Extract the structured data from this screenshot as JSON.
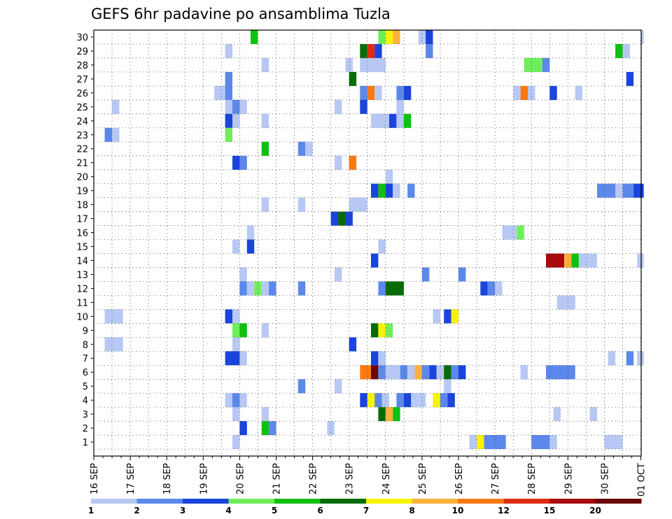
{
  "chart_data": {
    "type": "heatmap",
    "title": "GEFS 6hr padavine po ansamblima Tuzla",
    "x_ticks": [
      "16 SEP",
      "17 SEP",
      "18 SEP",
      "19 SEP",
      "20 SEP",
      "21 SEP",
      "22 SEP",
      "23 SEP",
      "24 SEP",
      "25 SEP",
      "26 SEP",
      "27 SEP",
      "28 SEP",
      "29 SEP",
      "30 SEP",
      "01 OCT"
    ],
    "y_ticks": [
      1,
      2,
      3,
      4,
      5,
      6,
      7,
      8,
      9,
      10,
      11,
      12,
      13,
      14,
      15,
      16,
      17,
      18,
      19,
      20,
      21,
      22,
      23,
      24,
      25,
      26,
      27,
      28,
      29,
      30
    ],
    "x_range_days": [
      0,
      15.08
    ],
    "y_range_members": [
      0,
      30
    ],
    "grid": true,
    "colorbar": {
      "labels": [
        "1",
        "2",
        "3",
        "4",
        "5",
        "6",
        "7",
        "8",
        "10",
        "12",
        "15",
        "20"
      ],
      "colors": [
        "#b7c8f4",
        "#5b88ea",
        "#1a44db",
        "#6fee5a",
        "#10c010",
        "#076b07",
        "#f7f400",
        "#fbb23b",
        "#f97a13",
        "#dc2b10",
        "#a70a0a",
        "#6a0707"
      ]
    },
    "cells": [
      [
        30,
        4.3,
        4.5,
        4
      ],
      [
        30,
        7.8,
        8.0,
        3
      ],
      [
        30,
        8.0,
        8.2,
        6
      ],
      [
        30,
        8.2,
        8.4,
        7
      ],
      [
        30,
        8.9,
        9.1,
        0
      ],
      [
        30,
        9.1,
        9.3,
        2
      ],
      [
        30,
        15.0,
        15.1,
        0
      ],
      [
        29,
        3.6,
        3.8,
        0
      ],
      [
        29,
        7.3,
        7.5,
        5
      ],
      [
        29,
        7.5,
        7.7,
        9
      ],
      [
        29,
        7.7,
        7.9,
        2
      ],
      [
        29,
        9.1,
        9.3,
        1
      ],
      [
        29,
        14.3,
        14.5,
        4
      ],
      [
        29,
        14.5,
        14.7,
        0
      ],
      [
        28,
        4.6,
        4.8,
        0
      ],
      [
        28,
        6.9,
        7.1,
        0
      ],
      [
        28,
        7.3,
        8.0,
        0
      ],
      [
        28,
        11.8,
        12.3,
        3
      ],
      [
        28,
        12.3,
        12.5,
        1
      ],
      [
        27,
        3.6,
        3.8,
        1
      ],
      [
        27,
        7.0,
        7.2,
        5
      ],
      [
        27,
        14.6,
        14.8,
        2
      ],
      [
        26,
        3.3,
        3.6,
        0
      ],
      [
        26,
        3.6,
        3.8,
        1
      ],
      [
        26,
        7.3,
        7.5,
        1
      ],
      [
        26,
        7.5,
        7.7,
        8
      ],
      [
        26,
        7.7,
        7.9,
        0
      ],
      [
        26,
        8.3,
        8.5,
        1
      ],
      [
        26,
        8.5,
        8.7,
        2
      ],
      [
        26,
        11.5,
        11.7,
        0
      ],
      [
        26,
        11.7,
        11.9,
        8
      ],
      [
        26,
        11.9,
        12.1,
        0
      ],
      [
        26,
        12.5,
        12.7,
        2
      ],
      [
        26,
        13.2,
        13.4,
        0
      ],
      [
        25,
        0.5,
        0.7,
        0
      ],
      [
        25,
        3.6,
        3.8,
        0
      ],
      [
        25,
        3.8,
        4.0,
        1
      ],
      [
        25,
        4.0,
        4.2,
        0
      ],
      [
        25,
        6.6,
        6.8,
        0
      ],
      [
        25,
        7.3,
        7.5,
        2
      ],
      [
        25,
        8.3,
        8.5,
        0
      ],
      [
        24,
        3.6,
        3.8,
        2
      ],
      [
        24,
        3.8,
        4.0,
        0
      ],
      [
        24,
        4.6,
        4.8,
        0
      ],
      [
        24,
        7.6,
        8.1,
        0
      ],
      [
        24,
        8.1,
        8.3,
        2
      ],
      [
        24,
        8.3,
        8.5,
        0
      ],
      [
        24,
        8.5,
        8.7,
        4
      ],
      [
        23,
        0.3,
        0.5,
        1
      ],
      [
        23,
        0.5,
        0.7,
        0
      ],
      [
        23,
        3.6,
        3.8,
        3
      ],
      [
        22,
        4.6,
        4.8,
        4
      ],
      [
        22,
        5.6,
        5.8,
        1
      ],
      [
        22,
        5.8,
        6.0,
        0
      ],
      [
        21,
        3.8,
        4.0,
        2
      ],
      [
        21,
        4.0,
        4.2,
        1
      ],
      [
        21,
        6.6,
        6.8,
        0
      ],
      [
        21,
        7.0,
        7.2,
        8
      ],
      [
        20,
        8.0,
        8.2,
        0
      ],
      [
        19,
        7.6,
        7.8,
        2
      ],
      [
        19,
        7.8,
        8.0,
        4
      ],
      [
        19,
        8.0,
        8.2,
        2
      ],
      [
        19,
        8.2,
        8.4,
        0
      ],
      [
        19,
        8.6,
        8.8,
        1
      ],
      [
        19,
        13.8,
        14.3,
        1
      ],
      [
        19,
        14.3,
        14.5,
        0
      ],
      [
        19,
        14.5,
        14.8,
        1
      ],
      [
        19,
        14.8,
        15.08,
        2
      ],
      [
        18,
        4.6,
        4.8,
        0
      ],
      [
        18,
        5.6,
        5.8,
        0
      ],
      [
        18,
        7.0,
        7.5,
        0
      ],
      [
        17,
        6.5,
        6.7,
        2
      ],
      [
        17,
        6.7,
        6.9,
        5
      ],
      [
        17,
        6.9,
        7.1,
        2
      ],
      [
        16,
        4.2,
        4.4,
        0
      ],
      [
        16,
        11.2,
        11.6,
        0
      ],
      [
        16,
        11.6,
        11.8,
        3
      ],
      [
        15,
        3.8,
        4.0,
        0
      ],
      [
        15,
        4.2,
        4.4,
        2
      ],
      [
        15,
        7.8,
        8.0,
        0
      ],
      [
        14,
        7.6,
        7.8,
        2
      ],
      [
        14,
        12.4,
        12.9,
        10
      ],
      [
        14,
        12.9,
        13.1,
        7
      ],
      [
        14,
        13.1,
        13.3,
        4
      ],
      [
        14,
        13.3,
        13.8,
        0
      ],
      [
        14,
        14.9,
        15.1,
        0
      ],
      [
        13,
        4.0,
        4.2,
        0
      ],
      [
        13,
        6.6,
        6.8,
        0
      ],
      [
        13,
        9.0,
        9.2,
        1
      ],
      [
        13,
        10.0,
        10.2,
        1
      ],
      [
        12,
        4.0,
        4.2,
        1
      ],
      [
        12,
        4.2,
        4.4,
        0
      ],
      [
        12,
        4.4,
        4.6,
        3
      ],
      [
        12,
        4.6,
        4.8,
        0
      ],
      [
        12,
        4.8,
        5.0,
        1
      ],
      [
        12,
        5.6,
        5.8,
        1
      ],
      [
        12,
        7.8,
        8.0,
        1
      ],
      [
        12,
        8.0,
        8.5,
        5
      ],
      [
        12,
        10.6,
        10.8,
        2
      ],
      [
        12,
        10.8,
        11.0,
        1
      ],
      [
        12,
        11.0,
        11.2,
        0
      ],
      [
        11,
        12.7,
        13.2,
        0
      ],
      [
        10,
        0.3,
        0.8,
        0
      ],
      [
        10,
        3.6,
        3.8,
        2
      ],
      [
        10,
        3.8,
        4.0,
        0
      ],
      [
        10,
        9.3,
        9.5,
        0
      ],
      [
        10,
        9.6,
        9.8,
        2
      ],
      [
        10,
        9.8,
        10.0,
        6
      ],
      [
        9,
        3.8,
        4.0,
        3
      ],
      [
        9,
        4.0,
        4.2,
        4
      ],
      [
        9,
        4.6,
        4.8,
        0
      ],
      [
        9,
        7.6,
        7.8,
        5
      ],
      [
        9,
        7.8,
        8.0,
        6
      ],
      [
        9,
        8.0,
        8.2,
        3
      ],
      [
        8,
        0.3,
        0.8,
        0
      ],
      [
        8,
        3.8,
        4.0,
        0
      ],
      [
        8,
        7.0,
        7.2,
        2
      ],
      [
        7,
        3.6,
        4.0,
        2
      ],
      [
        7,
        4.0,
        4.2,
        0
      ],
      [
        7,
        7.6,
        7.8,
        2
      ],
      [
        7,
        7.8,
        8.0,
        0
      ],
      [
        7,
        14.1,
        14.3,
        0
      ],
      [
        7,
        14.6,
        14.8,
        1
      ],
      [
        7,
        14.9,
        15.1,
        0
      ],
      [
        6,
        7.3,
        7.6,
        8
      ],
      [
        6,
        7.6,
        7.8,
        11
      ],
      [
        6,
        7.8,
        8.0,
        1
      ],
      [
        6,
        8.0,
        8.4,
        0
      ],
      [
        6,
        8.4,
        8.6,
        1
      ],
      [
        6,
        8.6,
        8.8,
        0
      ],
      [
        6,
        8.8,
        9.0,
        7
      ],
      [
        6,
        9.0,
        9.2,
        1
      ],
      [
        6,
        9.2,
        9.4,
        2
      ],
      [
        6,
        9.4,
        9.6,
        0
      ],
      [
        6,
        9.6,
        9.8,
        5
      ],
      [
        6,
        9.8,
        10.0,
        1
      ],
      [
        6,
        10.0,
        10.2,
        2
      ],
      [
        6,
        11.7,
        11.9,
        0
      ],
      [
        6,
        12.4,
        13.2,
        1
      ],
      [
        5,
        5.6,
        5.8,
        1
      ],
      [
        5,
        6.6,
        6.8,
        0
      ],
      [
        5,
        9.6,
        9.8,
        0
      ],
      [
        4,
        3.6,
        3.8,
        0
      ],
      [
        4,
        3.8,
        4.0,
        1
      ],
      [
        4,
        4.0,
        4.2,
        0
      ],
      [
        4,
        7.3,
        7.5,
        2
      ],
      [
        4,
        7.5,
        7.7,
        6
      ],
      [
        4,
        7.7,
        7.9,
        1
      ],
      [
        4,
        7.9,
        8.1,
        0
      ],
      [
        4,
        8.3,
        8.5,
        1
      ],
      [
        4,
        8.5,
        8.7,
        2
      ],
      [
        4,
        8.7,
        8.9,
        0
      ],
      [
        4,
        8.9,
        9.1,
        0
      ],
      [
        4,
        9.3,
        9.5,
        6
      ],
      [
        4,
        9.5,
        9.7,
        1
      ],
      [
        4,
        9.7,
        9.9,
        2
      ],
      [
        3,
        3.8,
        4.0,
        0
      ],
      [
        3,
        4.6,
        4.8,
        0
      ],
      [
        3,
        7.8,
        8.0,
        5
      ],
      [
        3,
        8.0,
        8.2,
        7
      ],
      [
        3,
        8.2,
        8.4,
        4
      ],
      [
        3,
        12.6,
        12.8,
        0
      ],
      [
        3,
        13.6,
        13.8,
        0
      ],
      [
        2,
        4.0,
        4.2,
        2
      ],
      [
        2,
        4.6,
        4.8,
        4
      ],
      [
        2,
        4.8,
        5.0,
        1
      ],
      [
        2,
        6.4,
        6.6,
        0
      ],
      [
        1,
        3.8,
        4.0,
        0
      ],
      [
        1,
        10.3,
        10.5,
        0
      ],
      [
        1,
        10.5,
        10.7,
        6
      ],
      [
        1,
        10.7,
        10.9,
        1
      ],
      [
        1,
        10.9,
        11.3,
        1
      ],
      [
        1,
        12.0,
        12.5,
        1
      ],
      [
        1,
        12.5,
        12.7,
        0
      ],
      [
        1,
        14.0,
        14.5,
        0
      ]
    ]
  }
}
